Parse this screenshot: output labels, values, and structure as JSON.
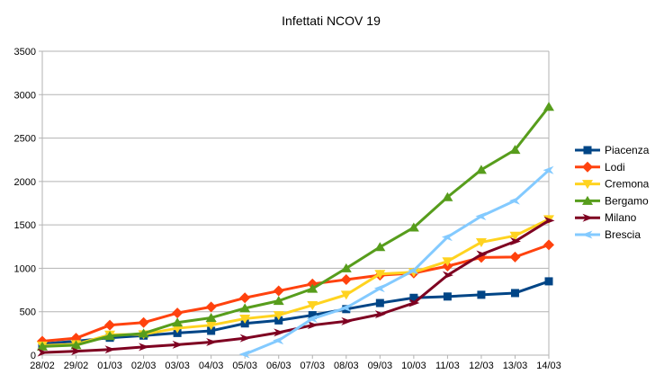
{
  "chart_data": {
    "type": "line",
    "title": "Infettati NCOV 19",
    "xlabel": "",
    "ylabel": "",
    "ylim": [
      0,
      3500
    ],
    "ytick_step": 500,
    "grid": "horizontal",
    "grid_color": "#b3b3b3",
    "axis_color": "#b3b3b3",
    "text_color": "#000000",
    "background_color": "#ffffff",
    "x": [
      "28/02",
      "29/02",
      "01/03",
      "02/03",
      "03/03",
      "04/03",
      "05/03",
      "06/03",
      "07/03",
      "08/03",
      "09/03",
      "10/03",
      "11/03",
      "12/03",
      "13/03",
      "14/03"
    ],
    "series": [
      {
        "name": "Piacenza",
        "color": "#004586",
        "marker": "square",
        "values": [
          130,
          160,
          200,
          225,
          255,
          280,
          365,
          400,
          460,
          530,
          600,
          660,
          675,
          695,
          715,
          850
        ]
      },
      {
        "name": "Lodi",
        "color": "#FF420E",
        "marker": "diamond",
        "values": [
          160,
          195,
          345,
          375,
          485,
          555,
          660,
          740,
          820,
          870,
          920,
          945,
          1025,
          1125,
          1130,
          1270
        ]
      },
      {
        "name": "Cremona",
        "color": "#FFD320",
        "marker": "triangle-down",
        "values": [
          110,
          125,
          235,
          240,
          310,
          345,
          420,
          460,
          575,
          695,
          935,
          955,
          1080,
          1300,
          1375,
          1565
        ]
      },
      {
        "name": "Bergamo",
        "color": "#579D1C",
        "marker": "triangle-up",
        "values": [
          100,
          115,
          220,
          250,
          375,
          430,
          540,
          625,
          765,
          1000,
          1245,
          1470,
          1820,
          2135,
          2365,
          2860
        ]
      },
      {
        "name": "Milano",
        "color": "#7E0021",
        "marker": "arrow-right",
        "values": [
          30,
          45,
          65,
          95,
          120,
          150,
          195,
          260,
          345,
          390,
          470,
          600,
          920,
          1160,
          1310,
          1550
        ]
      },
      {
        "name": "Brescia",
        "color": "#83CAFF",
        "marker": "arrow-left",
        "values": [
          null,
          null,
          null,
          null,
          null,
          null,
          10,
          170,
          420,
          545,
          770,
          975,
          1360,
          1600,
          1780,
          2130
        ]
      }
    ],
    "legend": {
      "position": "right",
      "entries": [
        "Piacenza",
        "Lodi",
        "Cremona",
        "Bergamo",
        "Milano",
        "Brescia"
      ]
    }
  }
}
